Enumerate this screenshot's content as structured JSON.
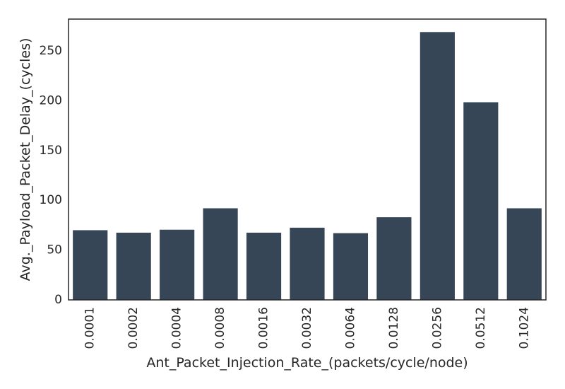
{
  "chart_data": {
    "type": "bar",
    "xlabel": "Ant_Packet_Injection_Rate_(packets/cycle/node)",
    "ylabel": "Avg._Payload_Packet_Delay_(cycles)",
    "categories": [
      "0.0001",
      "0.0002",
      "0.0004",
      "0.0008",
      "0.0016",
      "0.0032",
      "0.0064",
      "0.0128",
      "0.0256",
      "0.0512",
      "0.1024"
    ],
    "values": [
      70,
      67.5,
      70.5,
      92,
      67.5,
      72.5,
      67,
      83,
      269,
      198.5,
      92
    ],
    "yticks": [
      0,
      50,
      100,
      150,
      200,
      250
    ],
    "ylim": [
      0,
      282
    ],
    "grid": false,
    "bar_color": "#374657",
    "axis_color": "#262626"
  }
}
